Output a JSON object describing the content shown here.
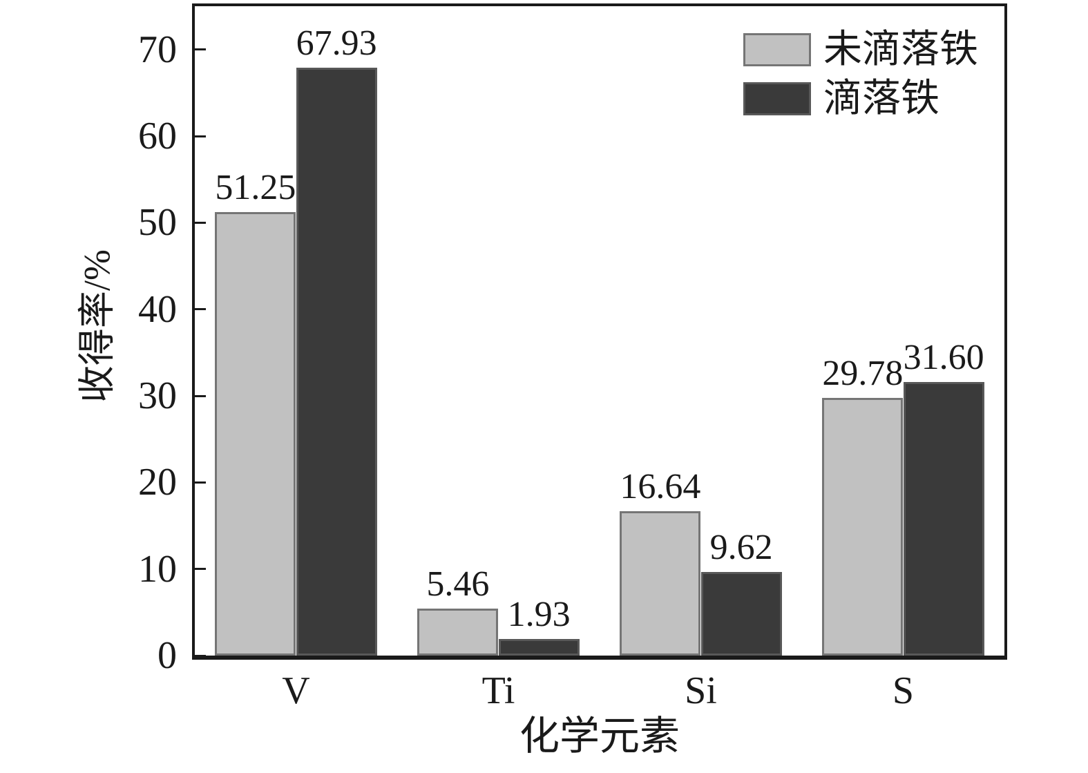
{
  "chart_data": {
    "type": "bar",
    "categories": [
      "V",
      "Ti",
      "Si",
      "S"
    ],
    "series": [
      {
        "name": "未滴落铁",
        "color": "#c1c1c1",
        "border_color": "#757575",
        "values": [
          51.25,
          5.46,
          16.64,
          29.78
        ],
        "labels": [
          "51.25",
          "5.46",
          "16.64",
          "29.78"
        ]
      },
      {
        "name": "滴落铁",
        "color": "#3a3a3a",
        "border_color": "#585858",
        "values": [
          67.93,
          1.93,
          9.62,
          31.6
        ],
        "labels": [
          "67.93",
          "1.93",
          "9.62",
          "31.60"
        ]
      }
    ],
    "title": "",
    "xlabel": "化学元素",
    "ylabel": "收得率/%",
    "ylim": [
      0,
      75
    ],
    "yticks": [
      0,
      10,
      20,
      30,
      40,
      50,
      60,
      70
    ],
    "grid": false,
    "legend_position": "top-right",
    "value_labels": true,
    "frame_color": "#1a1a1a",
    "background": "#ffffff"
  }
}
